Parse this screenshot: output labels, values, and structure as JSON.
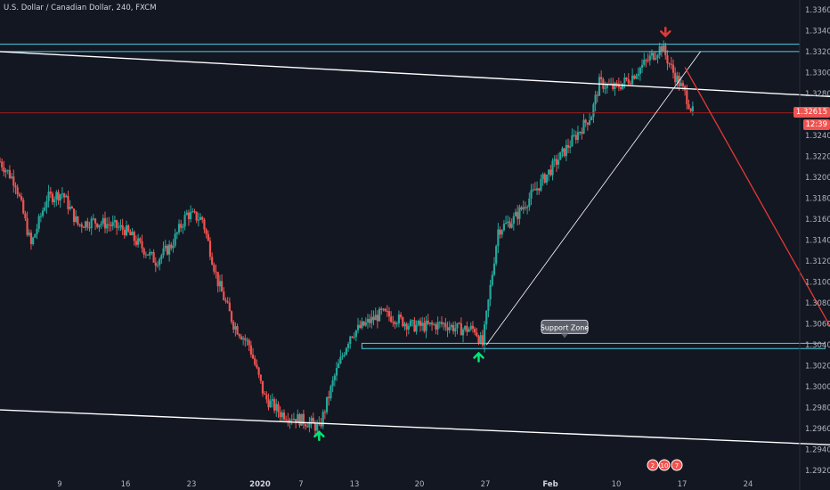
{
  "header": {
    "title": "U.S. Dollar / Canadian Dollar, 240, FXCM"
  },
  "price_axis": {
    "last_price": "1.32615",
    "countdown": "12:39"
  },
  "annotations": {
    "support_zone_label": "Support Zone",
    "event_badges": [
      "2",
      "10",
      "7"
    ]
  },
  "colors": {
    "background": "#131722",
    "bull": "#26a69a",
    "bear": "#ef5350",
    "resistance_line": "#4dd0e1",
    "trendline": "#ffffff",
    "projection": "#e53935",
    "last_price_line": "#b71c1c",
    "up_arrow": "#00e676",
    "down_arrow": "#e53935"
  },
  "chart_data": {
    "type": "candlestick",
    "ylim": [
      1.291,
      1.3365
    ],
    "yticks": [
      "1.33600",
      "1.33400",
      "1.33200",
      "1.33000",
      "1.32800",
      "1.32600",
      "1.32400",
      "1.32200",
      "1.32000",
      "1.31800",
      "1.31600",
      "1.31400",
      "1.31200",
      "1.31000",
      "1.30800",
      "1.30600",
      "1.30400",
      "1.30200",
      "1.30000",
      "1.29800",
      "1.29600",
      "1.29400",
      "1.29200"
    ],
    "xticks": [
      "9",
      "16",
      "23",
      "2020",
      "7",
      "13",
      "20",
      "27",
      "Feb",
      "10",
      "17",
      "24"
    ],
    "x_index_range": [
      0,
      200
    ],
    "price_path": [
      [
        0,
        1.3215
      ],
      [
        4,
        1.3195
      ],
      [
        8,
        1.3135
      ],
      [
        12,
        1.318
      ],
      [
        16,
        1.3185
      ],
      [
        20,
        1.3155
      ],
      [
        24,
        1.3158
      ],
      [
        28,
        1.3155
      ],
      [
        32,
        1.315
      ],
      [
        36,
        1.3135
      ],
      [
        40,
        1.312
      ],
      [
        44,
        1.3135
      ],
      [
        48,
        1.3165
      ],
      [
        52,
        1.316
      ],
      [
        56,
        1.31
      ],
      [
        60,
        1.306
      ],
      [
        64,
        1.304
      ],
      [
        68,
        1.299
      ],
      [
        72,
        1.2975
      ],
      [
        76,
        1.297
      ],
      [
        80,
        1.2965
      ],
      [
        82,
        1.296
      ],
      [
        86,
        1.301
      ],
      [
        90,
        1.305
      ],
      [
        94,
        1.306
      ],
      [
        98,
        1.307
      ],
      [
        102,
        1.3065
      ],
      [
        106,
        1.3058
      ],
      [
        110,
        1.3058
      ],
      [
        114,
        1.306
      ],
      [
        118,
        1.3055
      ],
      [
        122,
        1.3055
      ],
      [
        124,
        1.304
      ],
      [
        128,
        1.315
      ],
      [
        132,
        1.316
      ],
      [
        136,
        1.318
      ],
      [
        140,
        1.32
      ],
      [
        144,
        1.322
      ],
      [
        148,
        1.324
      ],
      [
        152,
        1.326
      ],
      [
        154,
        1.329
      ],
      [
        158,
        1.3285
      ],
      [
        162,
        1.3295
      ],
      [
        166,
        1.331
      ],
      [
        170,
        1.3325
      ],
      [
        173,
        1.33
      ],
      [
        176,
        1.328
      ],
      [
        178,
        1.3262
      ]
    ],
    "lines": {
      "resistance_top": 1.3327,
      "resistance_bottom": 1.332,
      "support_top": 1.30415,
      "support_bottom": 1.30365,
      "upper_trendline": [
        [
          0,
          1.332
        ],
        [
          224,
          1.3275
        ]
      ],
      "lower_trendline": [
        [
          0,
          1.2978
        ],
        [
          224,
          1.2943
        ]
      ],
      "rising_trendline": [
        [
          125,
          1.304
        ],
        [
          180,
          1.332
        ]
      ],
      "projection": [
        [
          176,
          1.3305
        ],
        [
          216,
          1.304
        ]
      ],
      "last_price": 1.32615
    },
    "signals": [
      {
        "type": "up",
        "x": 82,
        "y": 1.2957
      },
      {
        "type": "up",
        "x": 123,
        "y": 1.3032
      },
      {
        "type": "down",
        "x": 171,
        "y": 1.3335
      }
    ]
  }
}
